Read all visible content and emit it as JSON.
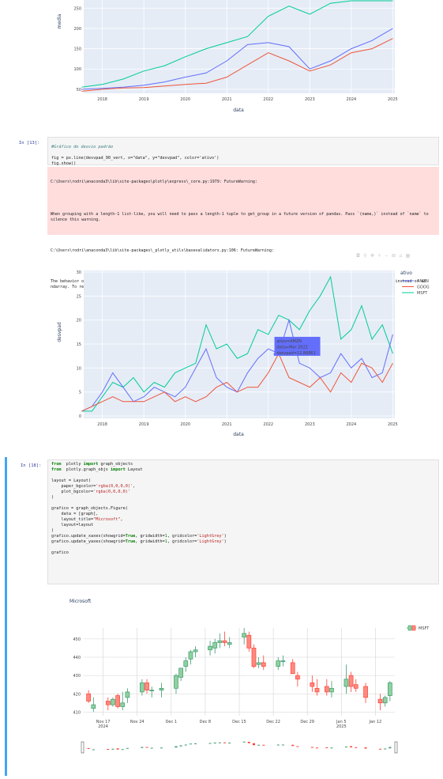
{
  "chart1": {
    "ylabel": "media",
    "xlabel": "data",
    "y_ticks": [
      "50",
      "100",
      "150",
      "200",
      "250"
    ],
    "x_ticks": [
      "2018",
      "2019",
      "2020",
      "2021",
      "2022",
      "2023",
      "2024",
      "2025"
    ]
  },
  "cell13": {
    "prompt": "In [13]:",
    "code_comment": "#Gráfico do desvio padrão",
    "code_line2": "fig = px.line(desvpad_90_vert, x=\"data\", y=\"desvpad\", color='ativo')",
    "code_line3": "fig.show()",
    "warning_lines": [
      "C:\\Users\\rodri\\anaconda3\\lib\\site-packages\\plotly\\express\\_core.py:1979: FutureWarning:",
      "When grouping with a length-1 list-like, you will need to pass a length-1 tuple to get_group in a future version of pandas. Pass `(name,)` instead of `name` to silence this warning.",
      "C:\\Users\\rodri\\anaconda3\\lib\\site-packages\\_plotly_utils\\basevalidators.py:106: FutureWarning:",
      "The behavior of DatetimeProperties.to_pydatetime is deprecated, in a future version this will return a Series containing python datetime objects instead of an ndarray. To retain the old behavior, call `np.array` on the result"
    ]
  },
  "chart2": {
    "ylabel": "desvpad",
    "xlabel": "data",
    "legend_title": "ativo",
    "legend": [
      {
        "name": "AMZN",
        "color": "#636efa"
      },
      {
        "name": "GOOG",
        "color": "#ef553b"
      },
      {
        "name": "MSFT",
        "color": "#00cc96"
      }
    ],
    "y_ticks": [
      "0",
      "5",
      "10",
      "15",
      "20",
      "25",
      "30"
    ],
    "x_ticks": [
      "2018",
      "2019",
      "2020",
      "2021",
      "2022",
      "2023",
      "2024",
      "2025"
    ],
    "tooltip": [
      "ativo=AMZN",
      "data=Mar 2022",
      "desvpad=12.86861"
    ]
  },
  "cell18": {
    "prompt": "In [18]:",
    "code": [
      [
        [
          "kw",
          "from"
        ],
        [
          "",
          "  plotly "
        ],
        [
          "kw",
          "import"
        ],
        [
          "",
          " graph_objects"
        ]
      ],
      [
        [
          "kw",
          "from"
        ],
        [
          "",
          "  plotly.graph_objs "
        ],
        [
          "kw",
          "import"
        ],
        [
          "",
          " Layout"
        ]
      ],
      [
        [
          "",
          ""
        ]
      ],
      [
        [
          "",
          "layout = Layout("
        ]
      ],
      [
        [
          "",
          "    paper_bgcolor="
        ],
        [
          "str",
          "'rgba(0,0,0,0)'"
        ],
        [
          "",
          ","
        ]
      ],
      [
        [
          "",
          "    plot_bgcolor="
        ],
        [
          "str",
          "'rgba(0,0,0,0)'"
        ]
      ],
      [
        [
          "",
          ")"
        ]
      ],
      [
        [
          "",
          ""
        ]
      ],
      [
        [
          "",
          "grafico = graph_objects.Figure("
        ]
      ],
      [
        [
          "",
          "    data = [graph],"
        ]
      ],
      [
        [
          "",
          "    layout_title="
        ],
        [
          "str",
          "\"Microsoft\""
        ],
        [
          "",
          ","
        ]
      ],
      [
        [
          "",
          "    layout=layout"
        ]
      ],
      [
        [
          "",
          ")"
        ]
      ],
      [
        [
          "",
          "grafico.update_xaxes(showgrid="
        ],
        [
          "kw",
          "True"
        ],
        [
          "",
          ", gridwidth="
        ],
        [
          "num",
          "1"
        ],
        [
          "",
          ", gridcolor="
        ],
        [
          "str",
          "'LightGrey'"
        ],
        [
          "",
          ")"
        ]
      ],
      [
        [
          "",
          "grafico.update_yaxes(showgrid="
        ],
        [
          "kw",
          "True"
        ],
        [
          "",
          ", gridwidth="
        ],
        [
          "num",
          "1"
        ],
        [
          "",
          ", gridcolor="
        ],
        [
          "str",
          "'LightGrey'"
        ],
        [
          "",
          ")"
        ]
      ],
      [
        [
          "",
          ""
        ]
      ],
      [
        [
          "",
          "grafico"
        ]
      ]
    ]
  },
  "chart3": {
    "title": "Microsoft",
    "legend": "MSFT",
    "y_ticks": [
      "410",
      "420",
      "430",
      "440",
      "450"
    ],
    "x_ticks": [
      "Nov 17\n2024",
      "Nov 24",
      "Dec 1",
      "Dec 8",
      "Dec 15",
      "Dec 22",
      "Dec 29",
      "Jan 5\n2025",
      "Jan 12"
    ]
  },
  "chart_data": [
    {
      "type": "line",
      "xlabel": "data",
      "ylabel": "media",
      "ylim": [
        40,
        270
      ],
      "x": [
        "2017-07",
        "2018-01",
        "2018-07",
        "2019-01",
        "2019-07",
        "2020-01",
        "2020-07",
        "2021-01",
        "2021-07",
        "2022-01",
        "2022-07",
        "2023-01",
        "2023-07",
        "2024-01",
        "2024-07",
        "2025-01"
      ],
      "series": [
        {
          "values": [
            55,
            62,
            75,
            95,
            108,
            130,
            150,
            165,
            180,
            230,
            255,
            235,
            262,
            270,
            270,
            270
          ]
        },
        {
          "values": [
            50,
            52,
            55,
            60,
            68,
            80,
            90,
            120,
            160,
            165,
            155,
            100,
            120,
            150,
            170,
            200
          ]
        },
        {
          "values": [
            45,
            50,
            53,
            54,
            58,
            62,
            65,
            80,
            110,
            140,
            120,
            95,
            110,
            140,
            150,
            175
          ]
        }
      ]
    },
    {
      "type": "line",
      "xlabel": "data",
      "ylabel": "desvpad",
      "ylim": [
        0,
        30
      ],
      "x": [
        "2017-07",
        "2017-10",
        "2018-01",
        "2018-04",
        "2018-07",
        "2018-10",
        "2019-01",
        "2019-04",
        "2019-07",
        "2019-10",
        "2020-01",
        "2020-04",
        "2020-07",
        "2020-10",
        "2021-01",
        "2021-04",
        "2021-07",
        "2021-10",
        "2022-01",
        "2022-04",
        "2022-07",
        "2022-10",
        "2023-01",
        "2023-04",
        "2023-07",
        "2023-10",
        "2024-01",
        "2024-04",
        "2024-07",
        "2024-10",
        "2025-01"
      ],
      "series": [
        {
          "name": "AMZN",
          "values": [
            1,
            2,
            5,
            9,
            6,
            3,
            4,
            6,
            5,
            4,
            6,
            10,
            14,
            8,
            6,
            5,
            9,
            12,
            14,
            13,
            20,
            11,
            10,
            8,
            9,
            13,
            10,
            12,
            8,
            9,
            17
          ]
        },
        {
          "name": "GOOG",
          "values": [
            1,
            2,
            3,
            4,
            3,
            3,
            3,
            4,
            5,
            3,
            4,
            3,
            4,
            6,
            7,
            5,
            6,
            6,
            9,
            13,
            8,
            7,
            6,
            8,
            5,
            9,
            7,
            11,
            10,
            7,
            11
          ]
        },
        {
          "name": "MSFT",
          "values": [
            1,
            1,
            4,
            7,
            6,
            8,
            5,
            7,
            6,
            9,
            10,
            11,
            19,
            14,
            15,
            12,
            13,
            18,
            17,
            21,
            20,
            18,
            22,
            25,
            29,
            16,
            18,
            23,
            16,
            19,
            13
          ]
        }
      ]
    },
    {
      "type": "bar",
      "title": "Microsoft",
      "ylim": [
        408,
        456
      ],
      "x": [
        "2024-11-14",
        "2024-11-15",
        "2024-11-18",
        "2024-11-19",
        "2024-11-20",
        "2024-11-21",
        "2024-11-22",
        "2024-11-25",
        "2024-11-26",
        "2024-11-27",
        "2024-11-29",
        "2024-12-02",
        "2024-12-03",
        "2024-12-04",
        "2024-12-05",
        "2024-12-06",
        "2024-12-09",
        "2024-12-10",
        "2024-12-11",
        "2024-12-12",
        "2024-12-13",
        "2024-12-16",
        "2024-12-17",
        "2024-12-18",
        "2024-12-19",
        "2024-12-20",
        "2024-12-23",
        "2024-12-24",
        "2024-12-26",
        "2024-12-27",
        "2024-12-30",
        "2024-12-31",
        "2025-01-02",
        "2025-01-03",
        "2025-01-06",
        "2025-01-07",
        "2025-01-08",
        "2025-01-10",
        "2025-01-13",
        "2025-01-14",
        "2025-01-15"
      ],
      "series": [
        {
          "name": "open",
          "values": [
            420,
            412,
            416,
            414,
            419,
            413,
            418,
            421,
            426,
            422,
            422,
            423,
            429,
            435,
            439,
            443,
            444,
            445,
            448,
            449,
            447,
            451,
            452,
            445,
            436,
            437,
            435,
            438,
            437,
            430,
            426,
            423,
            424,
            421,
            424,
            430,
            425,
            424,
            417,
            415,
            419
          ]
        },
        {
          "name": "high",
          "values": [
            422,
            418,
            418,
            418,
            420,
            421,
            423,
            428,
            428,
            424,
            426,
            431,
            434,
            440,
            444,
            446,
            449,
            450,
            453,
            454,
            451,
            456,
            454,
            447,
            440,
            441,
            440,
            441,
            439,
            432,
            430,
            428,
            428,
            427,
            436,
            432,
            428,
            426,
            420,
            419,
            427
          ]
        },
        {
          "name": "low",
          "values": [
            415,
            410,
            411,
            413,
            412,
            411,
            415,
            419,
            420,
            418,
            418,
            420,
            427,
            432,
            436,
            440,
            441,
            442,
            445,
            446,
            445,
            447,
            443,
            434,
            434,
            433,
            433,
            435,
            431,
            424,
            421,
            419,
            419,
            418,
            420,
            421,
            421,
            415,
            411,
            413,
            416
          ]
        },
        {
          "name": "close",
          "values": [
            416,
            414,
            414,
            417,
            413,
            415,
            421,
            426,
            422,
            422,
            423,
            430,
            434,
            438,
            443,
            444,
            446,
            448,
            449,
            448,
            448,
            453,
            445,
            435,
            437,
            435,
            438,
            438,
            431,
            428,
            424,
            421,
            421,
            423,
            428,
            424,
            423,
            418,
            415,
            418,
            426
          ]
        }
      ]
    }
  ]
}
